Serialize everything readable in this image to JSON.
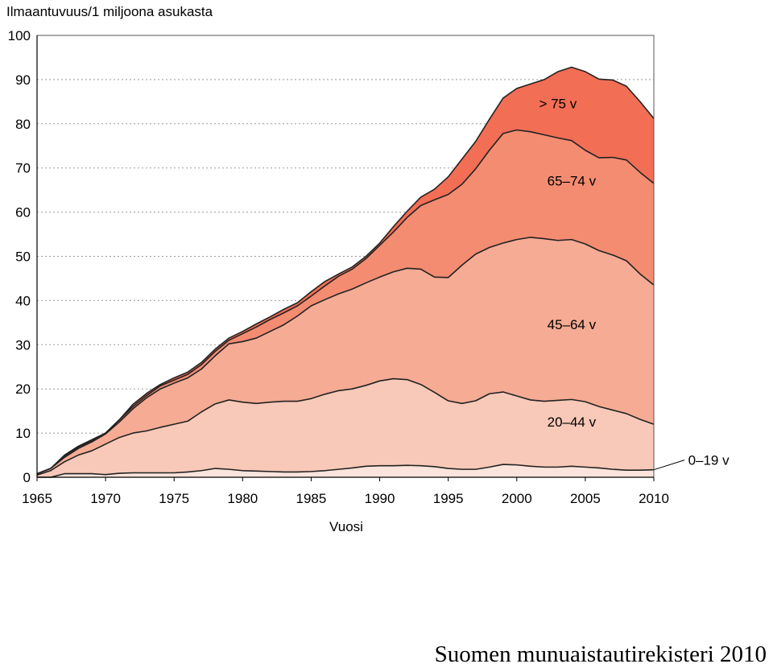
{
  "footer": {
    "credit": "Suomen munuaistautirekisteri 2010"
  },
  "chart_data": {
    "type": "area",
    "stacked": true,
    "title": "",
    "ylabel": "Ilmaantuvuus/1 miljoona asukasta",
    "xlabel": "Vuosi",
    "xlim": [
      1965,
      2010
    ],
    "ylim": [
      0,
      100
    ],
    "x_ticks": [
      "1965",
      "1970",
      "1975",
      "1980",
      "1985",
      "1990",
      "1995",
      "2000",
      "2005",
      "2010"
    ],
    "y_ticks": [
      "0",
      "10",
      "20",
      "30",
      "40",
      "50",
      "60",
      "70",
      "80",
      "90",
      "100"
    ],
    "grid": "horizontal dotted",
    "x": [
      1965,
      1966,
      1967,
      1968,
      1969,
      1970,
      1971,
      1972,
      1973,
      1974,
      1975,
      1976,
      1977,
      1978,
      1979,
      1980,
      1981,
      1982,
      1983,
      1984,
      1985,
      1986,
      1987,
      1988,
      1989,
      1990,
      1991,
      1992,
      1993,
      1994,
      1995,
      1996,
      1997,
      1998,
      1999,
      2000,
      2001,
      2002,
      2003,
      2004,
      2005,
      2006,
      2007,
      2008,
      2009,
      2010
    ],
    "series": [
      {
        "name": "0–19 v",
        "color": "#fbe4dc",
        "cumulative": [
          0,
          0,
          0.8,
          0.8,
          0.8,
          0.6,
          0.9,
          1.0,
          1.0,
          1.0,
          1.0,
          1.2,
          1.5,
          2.0,
          1.8,
          1.5,
          1.4,
          1.3,
          1.2,
          1.2,
          1.3,
          1.5,
          1.8,
          2.1,
          2.5,
          2.6,
          2.6,
          2.7,
          2.6,
          2.4,
          2.0,
          1.8,
          1.8,
          2.3,
          2.9,
          2.8,
          2.5,
          2.3,
          2.3,
          2.5,
          2.3,
          2.1,
          1.8,
          1.6,
          1.6,
          1.7
        ]
      },
      {
        "name": "20–44 v",
        "color": "#f8c9b8",
        "cumulative": [
          0.5,
          1.5,
          3.5,
          5.0,
          6.0,
          7.5,
          9.0,
          10.0,
          10.5,
          11.3,
          12.0,
          12.7,
          14.8,
          16.6,
          17.5,
          17.0,
          16.7,
          17.0,
          17.2,
          17.2,
          17.8,
          18.8,
          19.6,
          20.0,
          20.8,
          21.8,
          22.3,
          22.1,
          21.0,
          19.2,
          17.3,
          16.7,
          17.3,
          18.9,
          19.3,
          18.4,
          17.5,
          17.2,
          17.4,
          17.6,
          17.1,
          16.0,
          15.2,
          14.4,
          13.1,
          12.0
        ]
      },
      {
        "name": "45–64 v",
        "color": "#f6ab94",
        "cumulative": [
          0.8,
          2.0,
          4.5,
          6.5,
          8.0,
          9.8,
          12.5,
          15.5,
          18.0,
          20.0,
          21.3,
          22.5,
          24.5,
          27.5,
          30.2,
          30.7,
          31.5,
          33.0,
          34.5,
          36.5,
          38.8,
          40.2,
          41.5,
          42.6,
          44.0,
          45.3,
          46.5,
          47.3,
          47.1,
          45.3,
          45.2,
          48.0,
          50.5,
          52.0,
          53.0,
          53.8,
          54.3,
          54.0,
          53.6,
          53.8,
          52.8,
          51.3,
          50.3,
          49.0,
          46.0,
          43.5
        ]
      },
      {
        "name": "65–74 v",
        "color": "#f48c72",
        "cumulative": [
          0.8,
          2.0,
          4.8,
          6.8,
          8.3,
          10.0,
          13.0,
          16.0,
          18.5,
          20.7,
          22.0,
          23.3,
          25.5,
          28.5,
          31.0,
          32.5,
          34.0,
          35.7,
          37.2,
          38.8,
          41.0,
          43.3,
          45.5,
          47.1,
          49.5,
          52.5,
          55.5,
          58.8,
          61.5,
          62.8,
          64.0,
          66.3,
          69.8,
          74.0,
          77.8,
          78.6,
          78.2,
          77.5,
          76.8,
          76.2,
          74.0,
          72.3,
          72.4,
          71.8,
          69.0,
          66.5
        ]
      },
      {
        "name": "> 75 v",
        "color": "#f26e55",
        "cumulative": [
          0.8,
          2.0,
          5.0,
          7.0,
          8.5,
          10.0,
          13.0,
          16.5,
          19.0,
          21.0,
          22.5,
          23.8,
          26.0,
          29.0,
          31.5,
          33.0,
          34.7,
          36.3,
          38.0,
          39.5,
          42.0,
          44.3,
          46.0,
          47.6,
          50.0,
          53.0,
          56.7,
          60.2,
          63.4,
          65.2,
          68.0,
          72.0,
          76.0,
          81.0,
          85.8,
          88.0,
          89.0,
          90.0,
          91.8,
          92.8,
          91.8,
          90.1,
          89.9,
          88.5,
          85.0,
          81.2
        ]
      }
    ],
    "labels": [
      {
        "text": "> 75 v",
        "year": 2003,
        "value": 83.5
      },
      {
        "text": "65–74 v",
        "year": 2004,
        "value": 66.0
      },
      {
        "text": "45–64 v",
        "year": 2004,
        "value": 33.5
      },
      {
        "text": "20–44 v",
        "year": 2004,
        "value": 11.5
      },
      {
        "text": "0–19 v",
        "year": 2014,
        "value": 2.8
      }
    ]
  }
}
